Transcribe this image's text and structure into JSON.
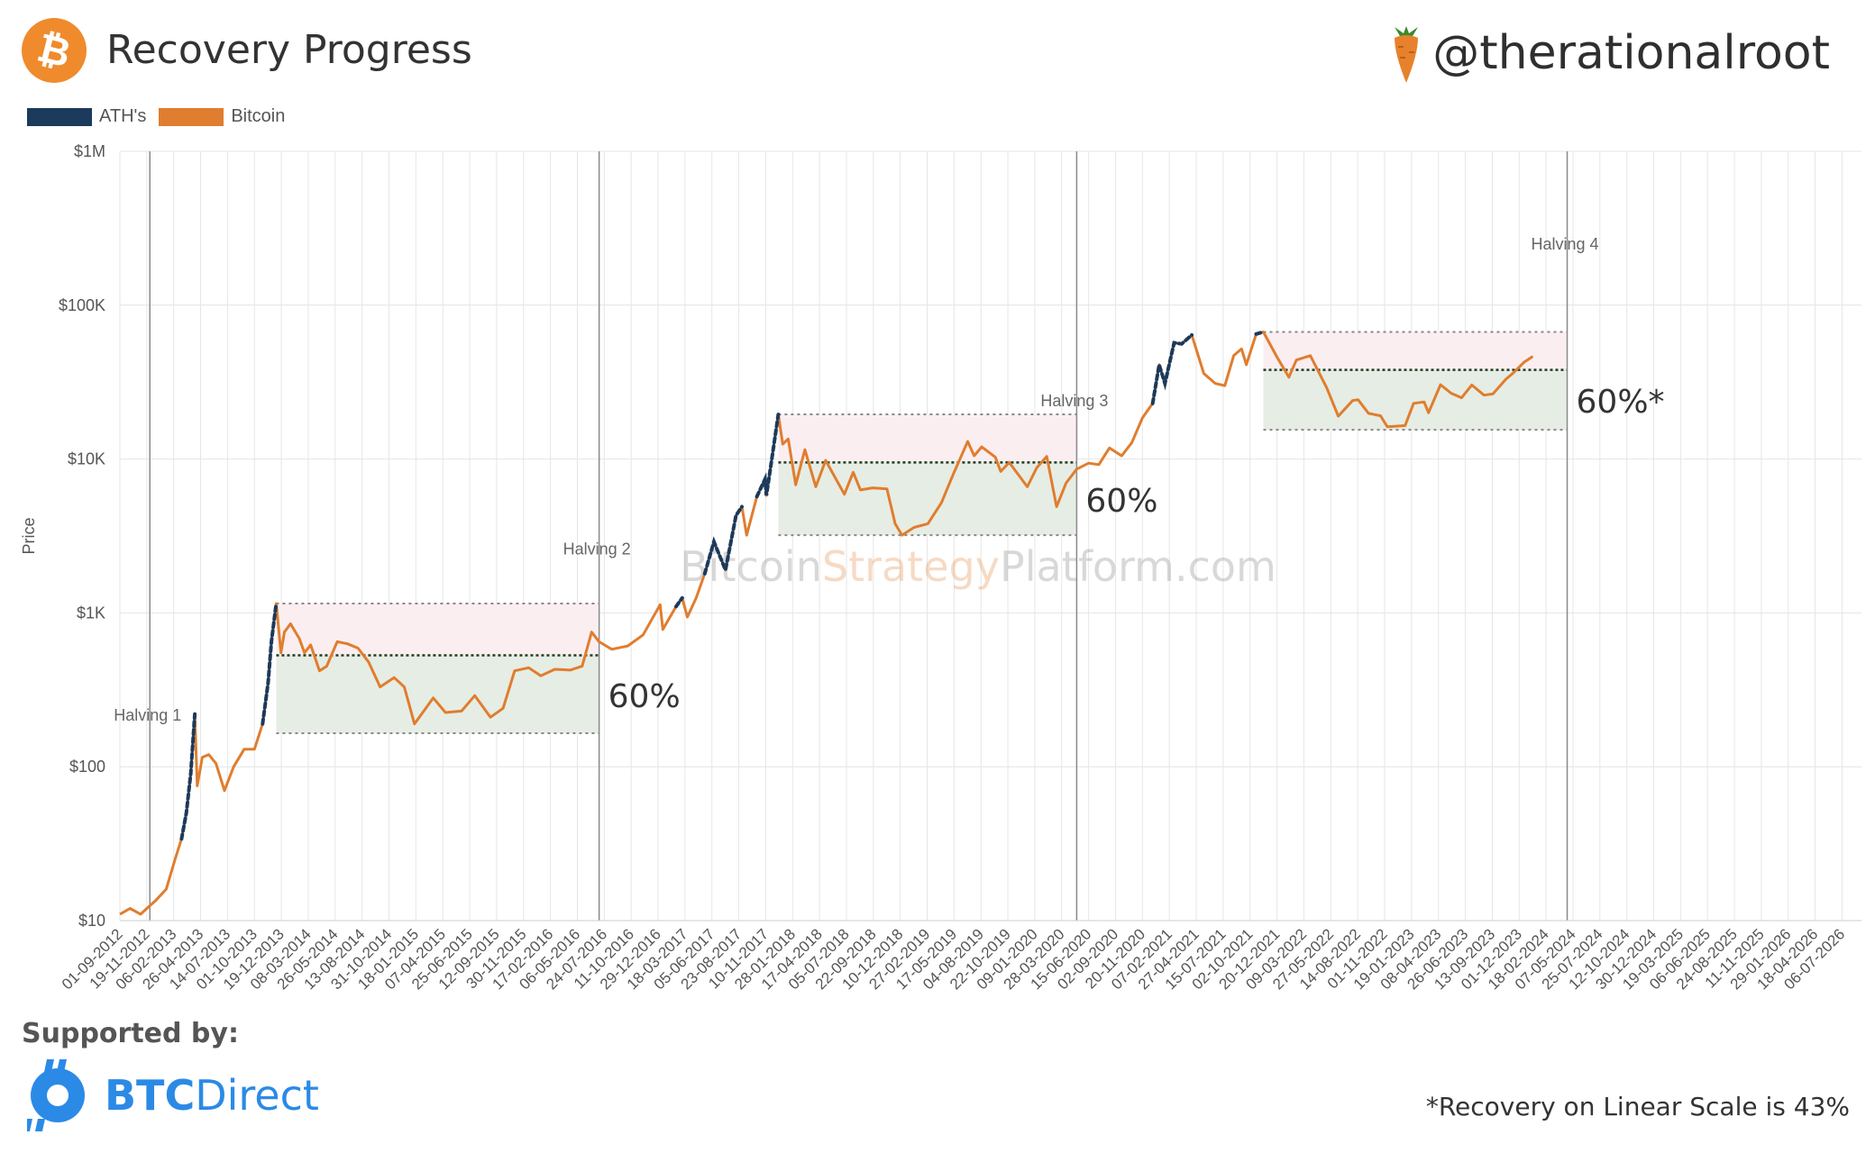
{
  "header": {
    "title": "Recovery Progress",
    "handle": "@therationalroot"
  },
  "colors": {
    "bitcoin": "#e07d2e",
    "ath": "#1b3a5c",
    "upper_band": "#fbeef0",
    "lower_band": "#e6ede4"
  },
  "legend": [
    {
      "label": "ATH's",
      "color": "#1b3a5c"
    },
    {
      "label": "Bitcoin",
      "color": "#e07d2e"
    }
  ],
  "watermark": {
    "part1": "Bitcoin",
    "part2": "Strategy",
    "part3": "Platform.com"
  },
  "chart_data": {
    "type": "line",
    "title": "",
    "xlabel": "",
    "ylabel": "Price",
    "y_scale": "log",
    "ylim": [
      10,
      1000000
    ],
    "xlim": [
      "2012-09-01",
      "2026-09-01"
    ],
    "y_ticks": [
      {
        "value": 10,
        "label": "$10"
      },
      {
        "value": 100,
        "label": "$100"
      },
      {
        "value": 1000,
        "label": "$1K"
      },
      {
        "value": 10000,
        "label": "$10K"
      },
      {
        "value": 100000,
        "label": "$100K"
      },
      {
        "value": 1000000,
        "label": "$1M"
      }
    ],
    "x_tick_start": "2012-09-01",
    "x_tick_labels": [
      "01-09-2012",
      "19-11-2012",
      "06-02-2013",
      "26-04-2013",
      "14-07-2013",
      "01-10-2013",
      "19-12-2013",
      "08-03-2014",
      "26-05-2014",
      "13-08-2014",
      "31-10-2014",
      "18-01-2015",
      "07-04-2015",
      "25-06-2015",
      "12-09-2015",
      "30-11-2015",
      "17-02-2016",
      "06-05-2016",
      "24-07-2016",
      "11-10-2016",
      "29-12-2016",
      "18-03-2017",
      "05-06-2017",
      "23-08-2017",
      "10-11-2017",
      "28-01-2018",
      "17-04-2018",
      "05-07-2018",
      "22-09-2018",
      "10-12-2018",
      "27-02-2019",
      "17-05-2019",
      "04-08-2019",
      "22-10-2019",
      "09-01-2020",
      "28-03-2020",
      "15-06-2020",
      "02-09-2020",
      "20-11-2020",
      "07-02-2021",
      "27-04-2021",
      "15-07-2021",
      "02-10-2021",
      "20-12-2021",
      "09-03-2022",
      "27-05-2022",
      "14-08-2022",
      "01-11-2022",
      "19-01-2023",
      "08-04-2023",
      "26-06-2023",
      "13-09-2023",
      "01-12-2023",
      "18-02-2024",
      "07-05-2024",
      "25-07-2024",
      "12-10-2024",
      "30-12-2024",
      "19-03-2025",
      "06-06-2025",
      "24-08-2025",
      "11-11-2025",
      "29-01-2026",
      "18-04-2026",
      "06-07-2026"
    ],
    "halvings": [
      {
        "label": "Halving 1",
        "date": "2012-11-28"
      },
      {
        "label": "Halving 2",
        "date": "2016-07-09"
      },
      {
        "label": "Halving 3",
        "date": "2020-05-11"
      },
      {
        "label": "Halving 4",
        "date": "2024-04-20"
      }
    ],
    "recovery_boxes": [
      {
        "start": "2013-12-04",
        "end": "2016-07-09",
        "high": 1150,
        "low": 165,
        "level_60": 530,
        "label": "60%"
      },
      {
        "start": "2017-12-17",
        "end": "2020-05-11",
        "high": 19500,
        "low": 3200,
        "level_60": 9500,
        "label": "60%"
      },
      {
        "start": "2021-11-10",
        "end": "2024-04-20",
        "high": 67000,
        "low": 15500,
        "level_60": 38000,
        "label": "60%*"
      }
    ],
    "series": [
      {
        "name": "Bitcoin",
        "points": [
          [
            "2012-09-01",
            11
          ],
          [
            "2012-10-01",
            12
          ],
          [
            "2012-11-01",
            11
          ],
          [
            "2012-11-28",
            12.5
          ],
          [
            "2012-12-15",
            13.5
          ],
          [
            "2013-01-15",
            16
          ],
          [
            "2013-02-10",
            25
          ],
          [
            "2013-03-01",
            34
          ],
          [
            "2013-03-15",
            50
          ],
          [
            "2013-03-28",
            90
          ],
          [
            "2013-04-09",
            220
          ],
          [
            "2013-04-16",
            75
          ],
          [
            "2013-05-01",
            115
          ],
          [
            "2013-05-20",
            120
          ],
          [
            "2013-06-10",
            105
          ],
          [
            "2013-07-05",
            70
          ],
          [
            "2013-08-01",
            100
          ],
          [
            "2013-09-01",
            130
          ],
          [
            "2013-10-01",
            130
          ],
          [
            "2013-10-25",
            190
          ],
          [
            "2013-11-10",
            350
          ],
          [
            "2013-11-20",
            650
          ],
          [
            "2013-12-04",
            1150
          ],
          [
            "2013-12-18",
            550
          ],
          [
            "2013-12-28",
            750
          ],
          [
            "2014-01-15",
            850
          ],
          [
            "2014-02-10",
            680
          ],
          [
            "2014-02-25",
            550
          ],
          [
            "2014-03-15",
            620
          ],
          [
            "2014-04-10",
            420
          ],
          [
            "2014-05-01",
            450
          ],
          [
            "2014-06-01",
            650
          ],
          [
            "2014-07-01",
            630
          ],
          [
            "2014-08-01",
            590
          ],
          [
            "2014-09-01",
            480
          ],
          [
            "2014-10-05",
            330
          ],
          [
            "2014-11-15",
            380
          ],
          [
            "2014-12-15",
            330
          ],
          [
            "2015-01-14",
            190
          ],
          [
            "2015-02-10",
            230
          ],
          [
            "2015-03-10",
            280
          ],
          [
            "2015-04-15",
            225
          ],
          [
            "2015-06-01",
            230
          ],
          [
            "2015-07-10",
            290
          ],
          [
            "2015-08-25",
            210
          ],
          [
            "2015-10-01",
            240
          ],
          [
            "2015-11-04",
            420
          ],
          [
            "2015-12-15",
            440
          ],
          [
            "2016-01-20",
            390
          ],
          [
            "2016-03-01",
            430
          ],
          [
            "2016-04-15",
            425
          ],
          [
            "2016-05-20",
            450
          ],
          [
            "2016-06-17",
            750
          ],
          [
            "2016-07-09",
            650
          ],
          [
            "2016-08-15",
            580
          ],
          [
            "2016-10-01",
            610
          ],
          [
            "2016-11-15",
            720
          ],
          [
            "2017-01-04",
            1130
          ],
          [
            "2017-01-12",
            780
          ],
          [
            "2017-02-20",
            1100
          ],
          [
            "2017-03-10",
            1250
          ],
          [
            "2017-03-25",
            940
          ],
          [
            "2017-04-20",
            1250
          ],
          [
            "2017-05-15",
            1800
          ],
          [
            "2017-06-11",
            2900
          ],
          [
            "2017-07-15",
            1900
          ],
          [
            "2017-08-15",
            4300
          ],
          [
            "2017-09-01",
            4900
          ],
          [
            "2017-09-15",
            3200
          ],
          [
            "2017-10-15",
            5700
          ],
          [
            "2017-11-08",
            7400
          ],
          [
            "2017-11-12",
            5800
          ],
          [
            "2017-11-28",
            10000
          ],
          [
            "2017-12-17",
            19500
          ],
          [
            "2017-12-30",
            12500
          ],
          [
            "2018-01-15",
            13500
          ],
          [
            "2018-02-06",
            6800
          ],
          [
            "2018-03-05",
            11500
          ],
          [
            "2018-04-06",
            6600
          ],
          [
            "2018-05-05",
            9800
          ],
          [
            "2018-06-29",
            5900
          ],
          [
            "2018-07-25",
            8200
          ],
          [
            "2018-08-15",
            6300
          ],
          [
            "2018-09-20",
            6500
          ],
          [
            "2018-11-01",
            6400
          ],
          [
            "2018-11-25",
            3800
          ],
          [
            "2018-12-15",
            3200
          ],
          [
            "2019-01-20",
            3600
          ],
          [
            "2019-03-01",
            3800
          ],
          [
            "2019-04-10",
            5200
          ],
          [
            "2019-05-15",
            8000
          ],
          [
            "2019-06-26",
            13000
          ],
          [
            "2019-07-15",
            10500
          ],
          [
            "2019-08-06",
            12000
          ],
          [
            "2019-09-15",
            10300
          ],
          [
            "2019-10-01",
            8300
          ],
          [
            "2019-10-26",
            9500
          ],
          [
            "2019-12-18",
            6600
          ],
          [
            "2020-01-15",
            8800
          ],
          [
            "2020-02-13",
            10400
          ],
          [
            "2020-03-13",
            4900
          ],
          [
            "2020-04-10",
            7000
          ],
          [
            "2020-05-11",
            8600
          ],
          [
            "2020-06-15",
            9400
          ],
          [
            "2020-07-15",
            9200
          ],
          [
            "2020-08-15",
            11800
          ],
          [
            "2020-09-20",
            10500
          ],
          [
            "2020-10-20",
            12800
          ],
          [
            "2020-11-20",
            18500
          ],
          [
            "2020-12-20",
            23000
          ],
          [
            "2021-01-08",
            41000
          ],
          [
            "2021-01-25",
            31000
          ],
          [
            "2021-02-21",
            57000
          ],
          [
            "2021-03-15",
            56000
          ],
          [
            "2021-04-14",
            64000
          ],
          [
            "2021-05-19",
            36000
          ],
          [
            "2021-06-22",
            31000
          ],
          [
            "2021-07-20",
            30000
          ],
          [
            "2021-08-15",
            47000
          ],
          [
            "2021-09-07",
            52000
          ],
          [
            "2021-09-21",
            41000
          ],
          [
            "2021-10-20",
            65000
          ],
          [
            "2021-11-10",
            67000
          ],
          [
            "2021-12-20",
            46000
          ],
          [
            "2022-01-24",
            34000
          ],
          [
            "2022-02-15",
            44000
          ],
          [
            "2022-03-28",
            47000
          ],
          [
            "2022-05-15",
            29000
          ],
          [
            "2022-06-18",
            19000
          ],
          [
            "2022-07-30",
            24000
          ],
          [
            "2022-08-15",
            24300
          ],
          [
            "2022-09-15",
            19800
          ],
          [
            "2022-10-20",
            19100
          ],
          [
            "2022-11-09",
            16200
          ],
          [
            "2022-12-31",
            16500
          ],
          [
            "2023-01-25",
            23000
          ],
          [
            "2023-02-25",
            23500
          ],
          [
            "2023-03-10",
            20000
          ],
          [
            "2023-04-14",
            30400
          ],
          [
            "2023-05-15",
            26800
          ],
          [
            "2023-06-15",
            25000
          ],
          [
            "2023-07-15",
            30300
          ],
          [
            "2023-08-20",
            26000
          ],
          [
            "2023-09-15",
            26500
          ],
          [
            "2023-10-23",
            33000
          ],
          [
            "2023-11-15",
            36500
          ],
          [
            "2023-12-15",
            42500
          ],
          [
            "2024-01-10",
            46500
          ]
        ]
      },
      {
        "name": "ATH's",
        "segments": [
          [
            "2013-02-20",
            "2013-04-09"
          ],
          [
            "2013-10-25",
            "2013-12-04"
          ],
          [
            "2017-02-20",
            "2017-03-10"
          ],
          [
            "2017-05-01",
            "2017-09-01"
          ],
          [
            "2017-10-01",
            "2017-12-17"
          ],
          [
            "2020-12-15",
            "2021-04-14"
          ],
          [
            "2021-10-15",
            "2021-11-10"
          ]
        ]
      }
    ]
  },
  "supported": {
    "label": "Supported by:",
    "name_bold": "BTC",
    "name_rest": "Direct"
  },
  "footnote": "*Recovery on Linear Scale is 43%"
}
